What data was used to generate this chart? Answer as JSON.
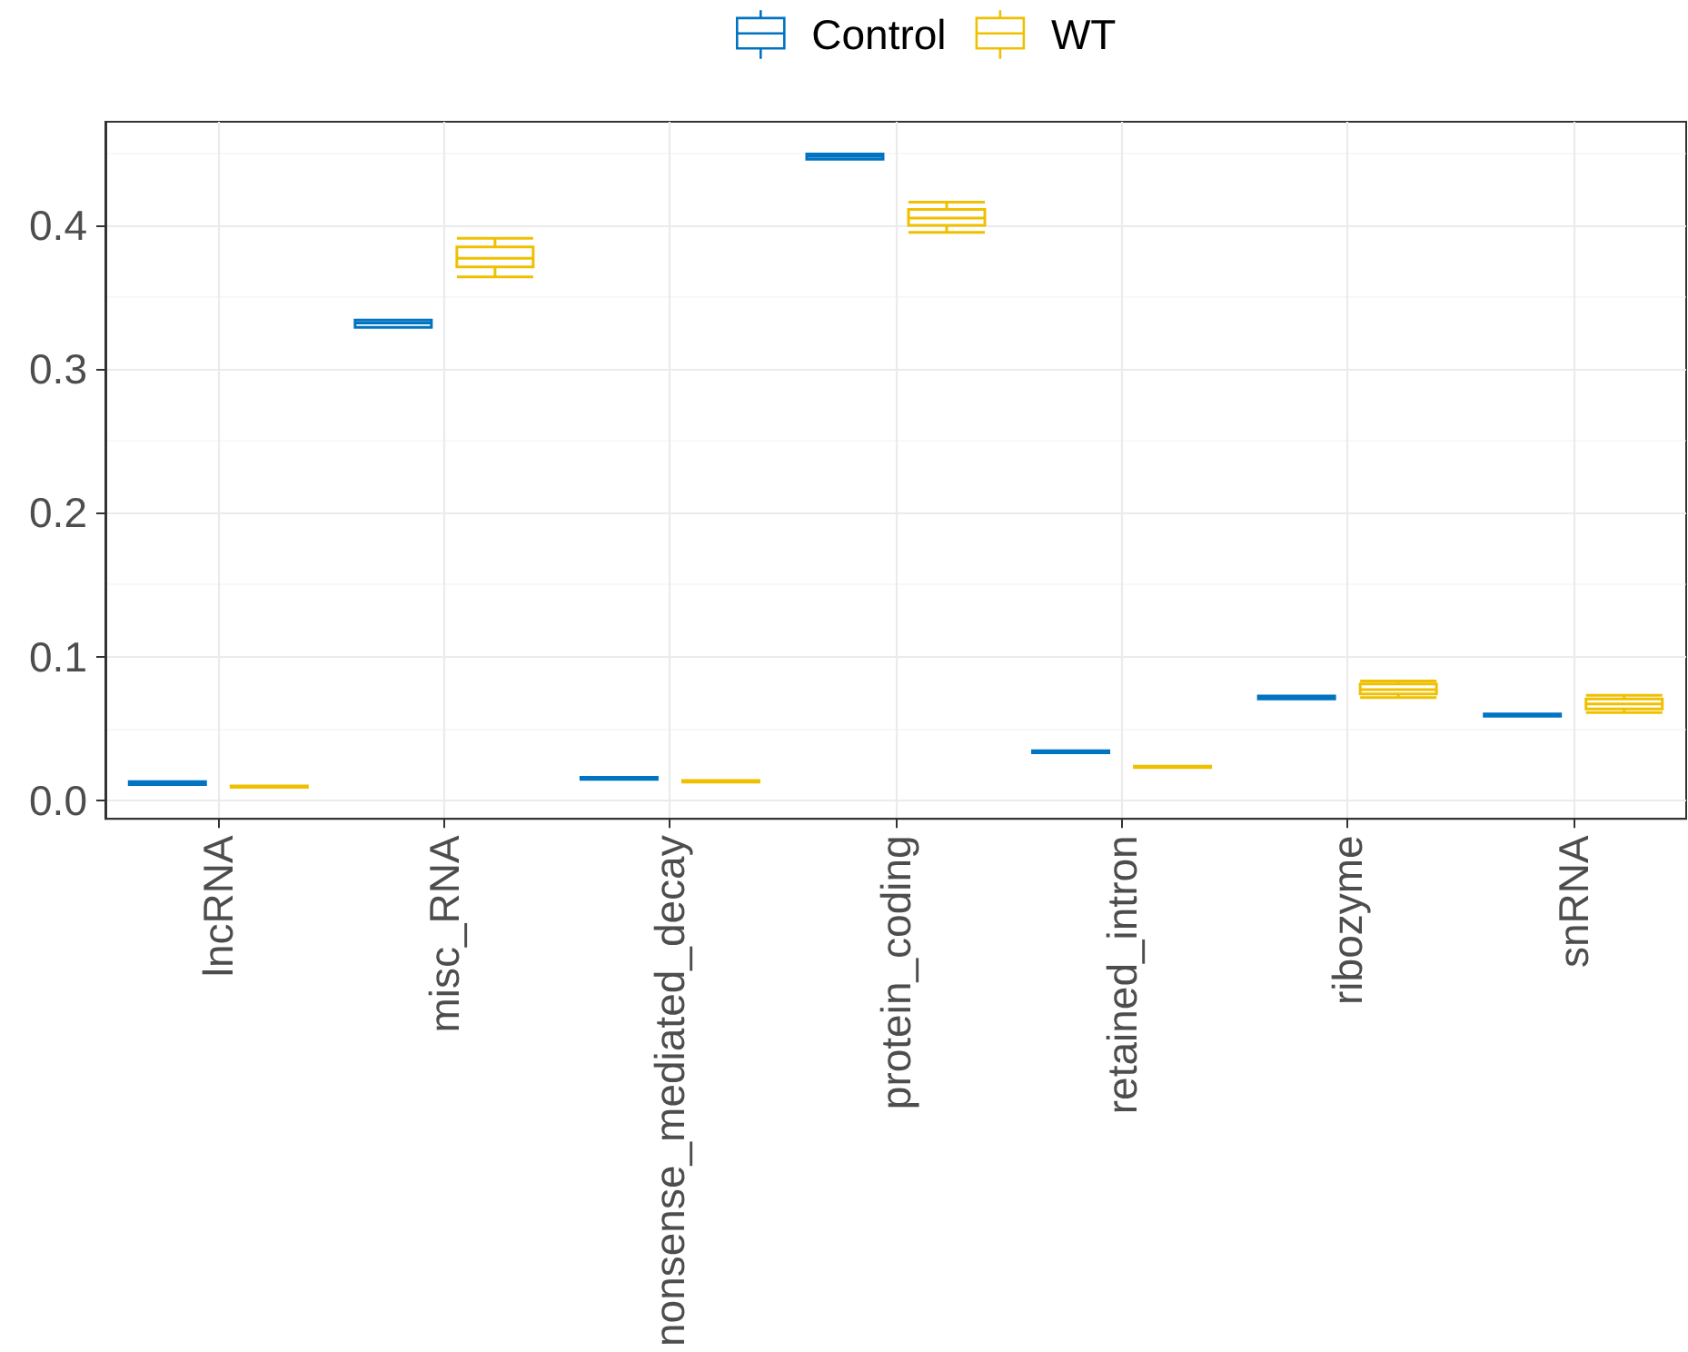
{
  "chart_data": {
    "type": "box",
    "categories": [
      "lncRNA",
      "misc_RNA",
      "nonsense_mediated_decay",
      "protein_coding",
      "retained_intron",
      "ribozyme",
      "snRNA"
    ],
    "series": [
      {
        "name": "Control",
        "color": "#0073c2",
        "boxes": [
          {
            "low": 0.011,
            "q1": 0.011,
            "median": 0.012,
            "q3": 0.013,
            "high": 0.013
          },
          {
            "low": 0.329,
            "q1": 0.329,
            "median": 0.332,
            "q3": 0.334,
            "high": 0.334
          },
          {
            "low": 0.0145,
            "q1": 0.0145,
            "median": 0.0153,
            "q3": 0.016,
            "high": 0.016
          },
          {
            "low": 0.446,
            "q1": 0.446,
            "median": 0.448,
            "q3": 0.4495,
            "high": 0.4495
          },
          {
            "low": 0.033,
            "q1": 0.033,
            "median": 0.0337,
            "q3": 0.0345,
            "high": 0.0345
          },
          {
            "low": 0.0705,
            "q1": 0.0705,
            "median": 0.0715,
            "q3": 0.0725,
            "high": 0.0725
          },
          {
            "low": 0.0585,
            "q1": 0.0585,
            "median": 0.0593,
            "q3": 0.06,
            "high": 0.06
          }
        ]
      },
      {
        "name": "WT",
        "color": "#efc000",
        "boxes": [
          {
            "low": 0.009,
            "q1": 0.009,
            "median": 0.0094,
            "q3": 0.01,
            "high": 0.01
          },
          {
            "low": 0.364,
            "q1": 0.371,
            "median": 0.377,
            "q3": 0.385,
            "high": 0.391
          },
          {
            "low": 0.0127,
            "q1": 0.0127,
            "median": 0.0132,
            "q3": 0.0138,
            "high": 0.0138
          },
          {
            "low": 0.395,
            "q1": 0.4,
            "median": 0.405,
            "q3": 0.411,
            "high": 0.416
          },
          {
            "low": 0.0227,
            "q1": 0.0227,
            "median": 0.0232,
            "q3": 0.0238,
            "high": 0.0238
          },
          {
            "low": 0.0715,
            "q1": 0.074,
            "median": 0.077,
            "q3": 0.081,
            "high": 0.083
          },
          {
            "low": 0.061,
            "q1": 0.0635,
            "median": 0.067,
            "q3": 0.0705,
            "high": 0.073
          }
        ]
      }
    ],
    "ylim": [
      -0.013,
      0.472
    ],
    "yticks": [
      {
        "value": 0,
        "label": "0.0"
      },
      0.1,
      0.2,
      0.3,
      0.4
    ],
    "grid": true,
    "legend": "top"
  }
}
